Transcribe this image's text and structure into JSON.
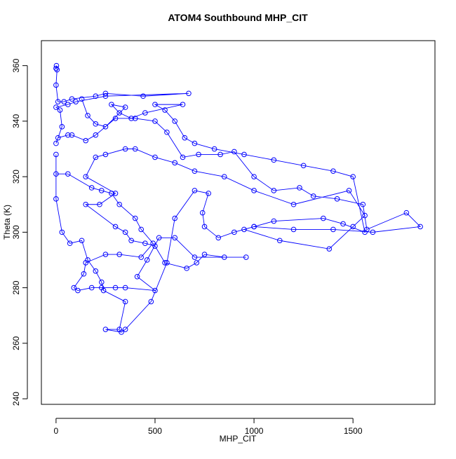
{
  "chart_data": {
    "type": "line",
    "title": "ATOM4 Southbound MHP_CIT",
    "xlabel": "MHP_CIT",
    "ylabel": "Theta (K)",
    "color": "#0000ff",
    "xlim": [
      -74,
      1914
    ],
    "ylim": [
      238,
      369
    ],
    "xticks": [
      0,
      500,
      1000,
      1500
    ],
    "yticks": [
      240,
      260,
      280,
      300,
      320,
      340,
      360
    ],
    "x": [
      0,
      2,
      5,
      0,
      10,
      40,
      80,
      200,
      250,
      440,
      670,
      250,
      100,
      60,
      0,
      20,
      30,
      0,
      10,
      60,
      80,
      150,
      200,
      300,
      400,
      500,
      560,
      640,
      720,
      830,
      900,
      1000,
      1100,
      1230,
      1300,
      1420,
      1550,
      1570,
      1770,
      1840,
      1600,
      1400,
      1200,
      1000,
      950,
      1130,
      1380,
      1500,
      1560,
      1480,
      1200,
      1000,
      850,
      700,
      600,
      500,
      400,
      350,
      250,
      200,
      150,
      300,
      220,
      150,
      300,
      350,
      380,
      450,
      500,
      550,
      660,
      710,
      750,
      850,
      960,
      700,
      600,
      520,
      460,
      410,
      500,
      350,
      300,
      230,
      180,
      110,
      90,
      140,
      150,
      250,
      320,
      430,
      490,
      430,
      400,
      320,
      280,
      230,
      180,
      60,
      0,
      0,
      0,
      30,
      70,
      130,
      160,
      200,
      230,
      240,
      350,
      320,
      250,
      330,
      350,
      480,
      560,
      600,
      700,
      770,
      740,
      750,
      820,
      900,
      1000,
      1100,
      1350,
      1450,
      1560,
      1500,
      1400,
      1250,
      1100,
      950,
      800,
      700,
      650,
      600,
      550,
      500,
      640,
      450,
      380,
      320,
      280,
      350,
      250,
      200,
      160,
      130
    ],
    "values": [
      359,
      360,
      358.5,
      353,
      347,
      347,
      348,
      349,
      350,
      349,
      350,
      349,
      347,
      346,
      345,
      344,
      338,
      332,
      334,
      335,
      335,
      333,
      335,
      341,
      341,
      340,
      336,
      327,
      328,
      328,
      329,
      320,
      315,
      316,
      313,
      312,
      310,
      301,
      307,
      302,
      300,
      301,
      301,
      302,
      301,
      297,
      294,
      302,
      306,
      315,
      310,
      315,
      320,
      322,
      325,
      327,
      330,
      330,
      328,
      327,
      320,
      314,
      310,
      310,
      302,
      300,
      297,
      296,
      295,
      289,
      287,
      289,
      292,
      291,
      291,
      291,
      298,
      298,
      290,
      284,
      279,
      280,
      280,
      280,
      280,
      279,
      280,
      285,
      289,
      292,
      292,
      291,
      296,
      301,
      305,
      310,
      314,
      315,
      316,
      321,
      321,
      328,
      312,
      300,
      296,
      297,
      290,
      286,
      282,
      279,
      275,
      265,
      265,
      264,
      265,
      275,
      289,
      305,
      315,
      314,
      307,
      302,
      298,
      300,
      302,
      304,
      305,
      303,
      300,
      320,
      322,
      324,
      326,
      328,
      330,
      332,
      334,
      340,
      344,
      346,
      346,
      343,
      341,
      343,
      346,
      345,
      338,
      339,
      342,
      348
    ]
  }
}
